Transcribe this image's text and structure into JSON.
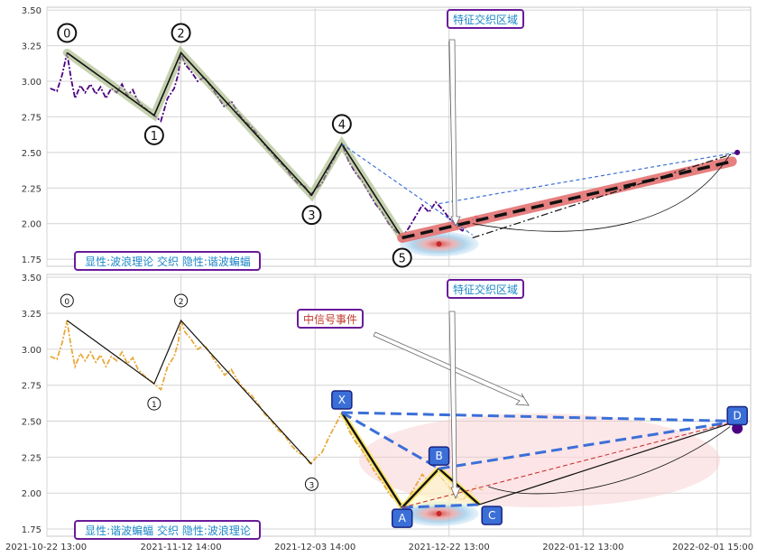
{
  "chart_data": [
    {
      "type": "line",
      "ylim": [
        1.7,
        3.52
      ],
      "yticks": [
        "1.75",
        "2.00",
        "2.25",
        "2.50",
        "2.75",
        "3.00",
        "3.25",
        "3.50"
      ],
      "xlim_days": [
        0,
        105
      ],
      "series": [
        {
          "values": [
            [
              0.5,
              2.95
            ],
            [
              1.5,
              2.93
            ],
            [
              2.3,
              3.05
            ],
            [
              3,
              3.2
            ],
            [
              3.6,
              3.02
            ],
            [
              4.2,
              2.88
            ],
            [
              5,
              2.97
            ],
            [
              5.7,
              2.92
            ],
            [
              6.5,
              2.98
            ],
            [
              7.3,
              2.91
            ],
            [
              8,
              2.96
            ],
            [
              8.8,
              2.88
            ],
            [
              9.6,
              2.95
            ],
            [
              10.4,
              2.92
            ],
            [
              11.2,
              2.98
            ],
            [
              12,
              2.9
            ],
            [
              12.8,
              2.94
            ],
            [
              13.6,
              2.86
            ],
            [
              14.4,
              2.82
            ],
            [
              15.2,
              2.79
            ],
            [
              16,
              2.76
            ],
            [
              17,
              2.72
            ],
            [
              18,
              2.88
            ],
            [
              19,
              2.95
            ],
            [
              19.6,
              3.05
            ],
            [
              20,
              3.2
            ],
            [
              20.6,
              3.12
            ],
            [
              21.5,
              3.07
            ],
            [
              22.5,
              3.0
            ],
            [
              23.5,
              3.03
            ],
            [
              24.5,
              2.96
            ],
            [
              25.5,
              2.89
            ],
            [
              26.5,
              2.82
            ],
            [
              27.5,
              2.86
            ],
            [
              28.5,
              2.78
            ],
            [
              29.5,
              2.72
            ],
            [
              30.5,
              2.68
            ],
            [
              31.5,
              2.62
            ],
            [
              32.5,
              2.55
            ],
            [
              33.5,
              2.5
            ],
            [
              34.5,
              2.44
            ],
            [
              35.5,
              2.4
            ],
            [
              36.5,
              2.33
            ],
            [
              37.5,
              2.28
            ],
            [
              38.5,
              2.26
            ],
            [
              39.3,
              2.2
            ],
            [
              40,
              2.24
            ],
            [
              41,
              2.28
            ],
            [
              42,
              2.38
            ],
            [
              43,
              2.47
            ],
            [
              44,
              2.56
            ],
            [
              45,
              2.44
            ],
            [
              46,
              2.36
            ],
            [
              47,
              2.3
            ],
            [
              48,
              2.22
            ],
            [
              49,
              2.14
            ],
            [
              50,
              2.08
            ],
            [
              51,
              2.0
            ],
            [
              52,
              1.95
            ],
            [
              53,
              1.9
            ],
            [
              54,
              1.97
            ],
            [
              55,
              2.05
            ],
            [
              56,
              2.13
            ],
            [
              57,
              2.08
            ],
            [
              58,
              2.15
            ],
            [
              59,
              2.1
            ],
            [
              60,
              2.04
            ],
            [
              61,
              1.98
            ],
            [
              62,
              1.95
            ],
            [
              63,
              2.0
            ],
            [
              64,
              2.05
            ],
            [
              65,
              2.02
            ]
          ],
          "color": "#4b0082"
        }
      ],
      "zigzag": {
        "labels": [
          "0",
          "1",
          "2",
          "3",
          "4",
          "5"
        ],
        "points": [
          [
            3,
            3.2
          ],
          [
            16,
            2.76
          ],
          [
            20,
            3.2
          ],
          [
            39.5,
            2.2
          ],
          [
            44,
            2.56
          ],
          [
            53,
            1.9
          ]
        ]
      },
      "projection": {
        "from": [
          53,
          1.9
        ],
        "to": [
          103,
          2.5
        ]
      },
      "event_center": [
        58.5,
        1.92
      ]
    },
    {
      "type": "line",
      "ylim": [
        1.7,
        3.52
      ],
      "yticks": [
        "1.75",
        "2.00",
        "2.25",
        "2.50",
        "2.75",
        "3.00",
        "3.25",
        "3.50"
      ],
      "xticks": [
        "2021-10-22 13:00",
        "2021-11-12 14:00",
        "2021-12-03 14:00",
        "2021-12-22 13:00",
        "2022-01-12 13:00",
        "2022-02-01 15:00"
      ],
      "xlim_days": [
        0,
        105
      ],
      "series": [
        {
          "values": [
            [
              0.5,
              2.95
            ],
            [
              1.5,
              2.93
            ],
            [
              2.3,
              3.05
            ],
            [
              3,
              3.2
            ],
            [
              3.6,
              3.02
            ],
            [
              4.2,
              2.88
            ],
            [
              5,
              2.97
            ],
            [
              5.7,
              2.92
            ],
            [
              6.5,
              2.98
            ],
            [
              7.3,
              2.91
            ],
            [
              8,
              2.96
            ],
            [
              8.8,
              2.88
            ],
            [
              9.6,
              2.95
            ],
            [
              10.4,
              2.92
            ],
            [
              11.2,
              2.98
            ],
            [
              12,
              2.9
            ],
            [
              12.8,
              2.94
            ],
            [
              13.6,
              2.86
            ],
            [
              14.4,
              2.82
            ],
            [
              15.2,
              2.79
            ],
            [
              16,
              2.76
            ],
            [
              17,
              2.72
            ],
            [
              18,
              2.88
            ],
            [
              19,
              2.95
            ],
            [
              19.6,
              3.05
            ],
            [
              20,
              3.2
            ],
            [
              20.6,
              3.12
            ],
            [
              21.5,
              3.07
            ],
            [
              22.5,
              3.0
            ],
            [
              23.5,
              3.03
            ],
            [
              24.5,
              2.96
            ],
            [
              25.5,
              2.89
            ],
            [
              26.5,
              2.82
            ],
            [
              27.5,
              2.86
            ],
            [
              28.5,
              2.78
            ],
            [
              29.5,
              2.72
            ],
            [
              30.5,
              2.68
            ],
            [
              31.5,
              2.62
            ],
            [
              32.5,
              2.55
            ],
            [
              33.5,
              2.5
            ],
            [
              34.5,
              2.44
            ],
            [
              35.5,
              2.4
            ],
            [
              36.5,
              2.33
            ],
            [
              37.5,
              2.28
            ],
            [
              38.5,
              2.26
            ],
            [
              39.3,
              2.2
            ],
            [
              40,
              2.24
            ],
            [
              41,
              2.28
            ],
            [
              42,
              2.38
            ],
            [
              43,
              2.47
            ],
            [
              44,
              2.56
            ],
            [
              45,
              2.44
            ],
            [
              46,
              2.36
            ],
            [
              47,
              2.3
            ],
            [
              48,
              2.22
            ],
            [
              49,
              2.14
            ],
            [
              50,
              2.08
            ],
            [
              51,
              2.0
            ],
            [
              52,
              1.95
            ],
            [
              53,
              1.9
            ],
            [
              54,
              1.97
            ],
            [
              55,
              2.05
            ],
            [
              56,
              2.13
            ],
            [
              57,
              2.08
            ],
            [
              58,
              2.15
            ],
            [
              59,
              2.1
            ],
            [
              60,
              2.04
            ],
            [
              61,
              1.98
            ],
            [
              62,
              1.95
            ],
            [
              63,
              2.0
            ],
            [
              64,
              2.05
            ],
            [
              65,
              2.02
            ]
          ],
          "color": "#e8a93a"
        }
      ],
      "zigzag": {
        "labels": [
          "0",
          "1",
          "2",
          "3"
        ],
        "points": [
          [
            3,
            3.2
          ],
          [
            16,
            2.76
          ],
          [
            20,
            3.2
          ],
          [
            39.5,
            2.2
          ]
        ]
      },
      "harmonic": {
        "labels": [
          "X",
          "A",
          "B",
          "C",
          "D"
        ],
        "points": [
          [
            44,
            2.56
          ],
          [
            53,
            1.9
          ],
          [
            58.5,
            2.17
          ],
          [
            64.5,
            1.92
          ],
          [
            103,
            2.5
          ]
        ]
      },
      "event_center": [
        58.5,
        1.92
      ]
    }
  ],
  "annotations": {
    "top_zone_label": "特征交织区域",
    "top_status": "显性:波浪理论 交织 隐性:谐波蝙蝠",
    "bottom_zone_label": "特征交织区域",
    "bottom_event_label": "中信号事件",
    "bottom_status": "显性:谐波蝙蝠 交织 隐性:波浪理论"
  },
  "colors": {
    "frame_border": "#6a1b9a",
    "label_text": "#1e88c8",
    "event_text": "#c0392b",
    "harmonic_node": "#3b6fd8",
    "projection_red": "#e57373",
    "zigzag_highlight": "#9fb27a"
  }
}
